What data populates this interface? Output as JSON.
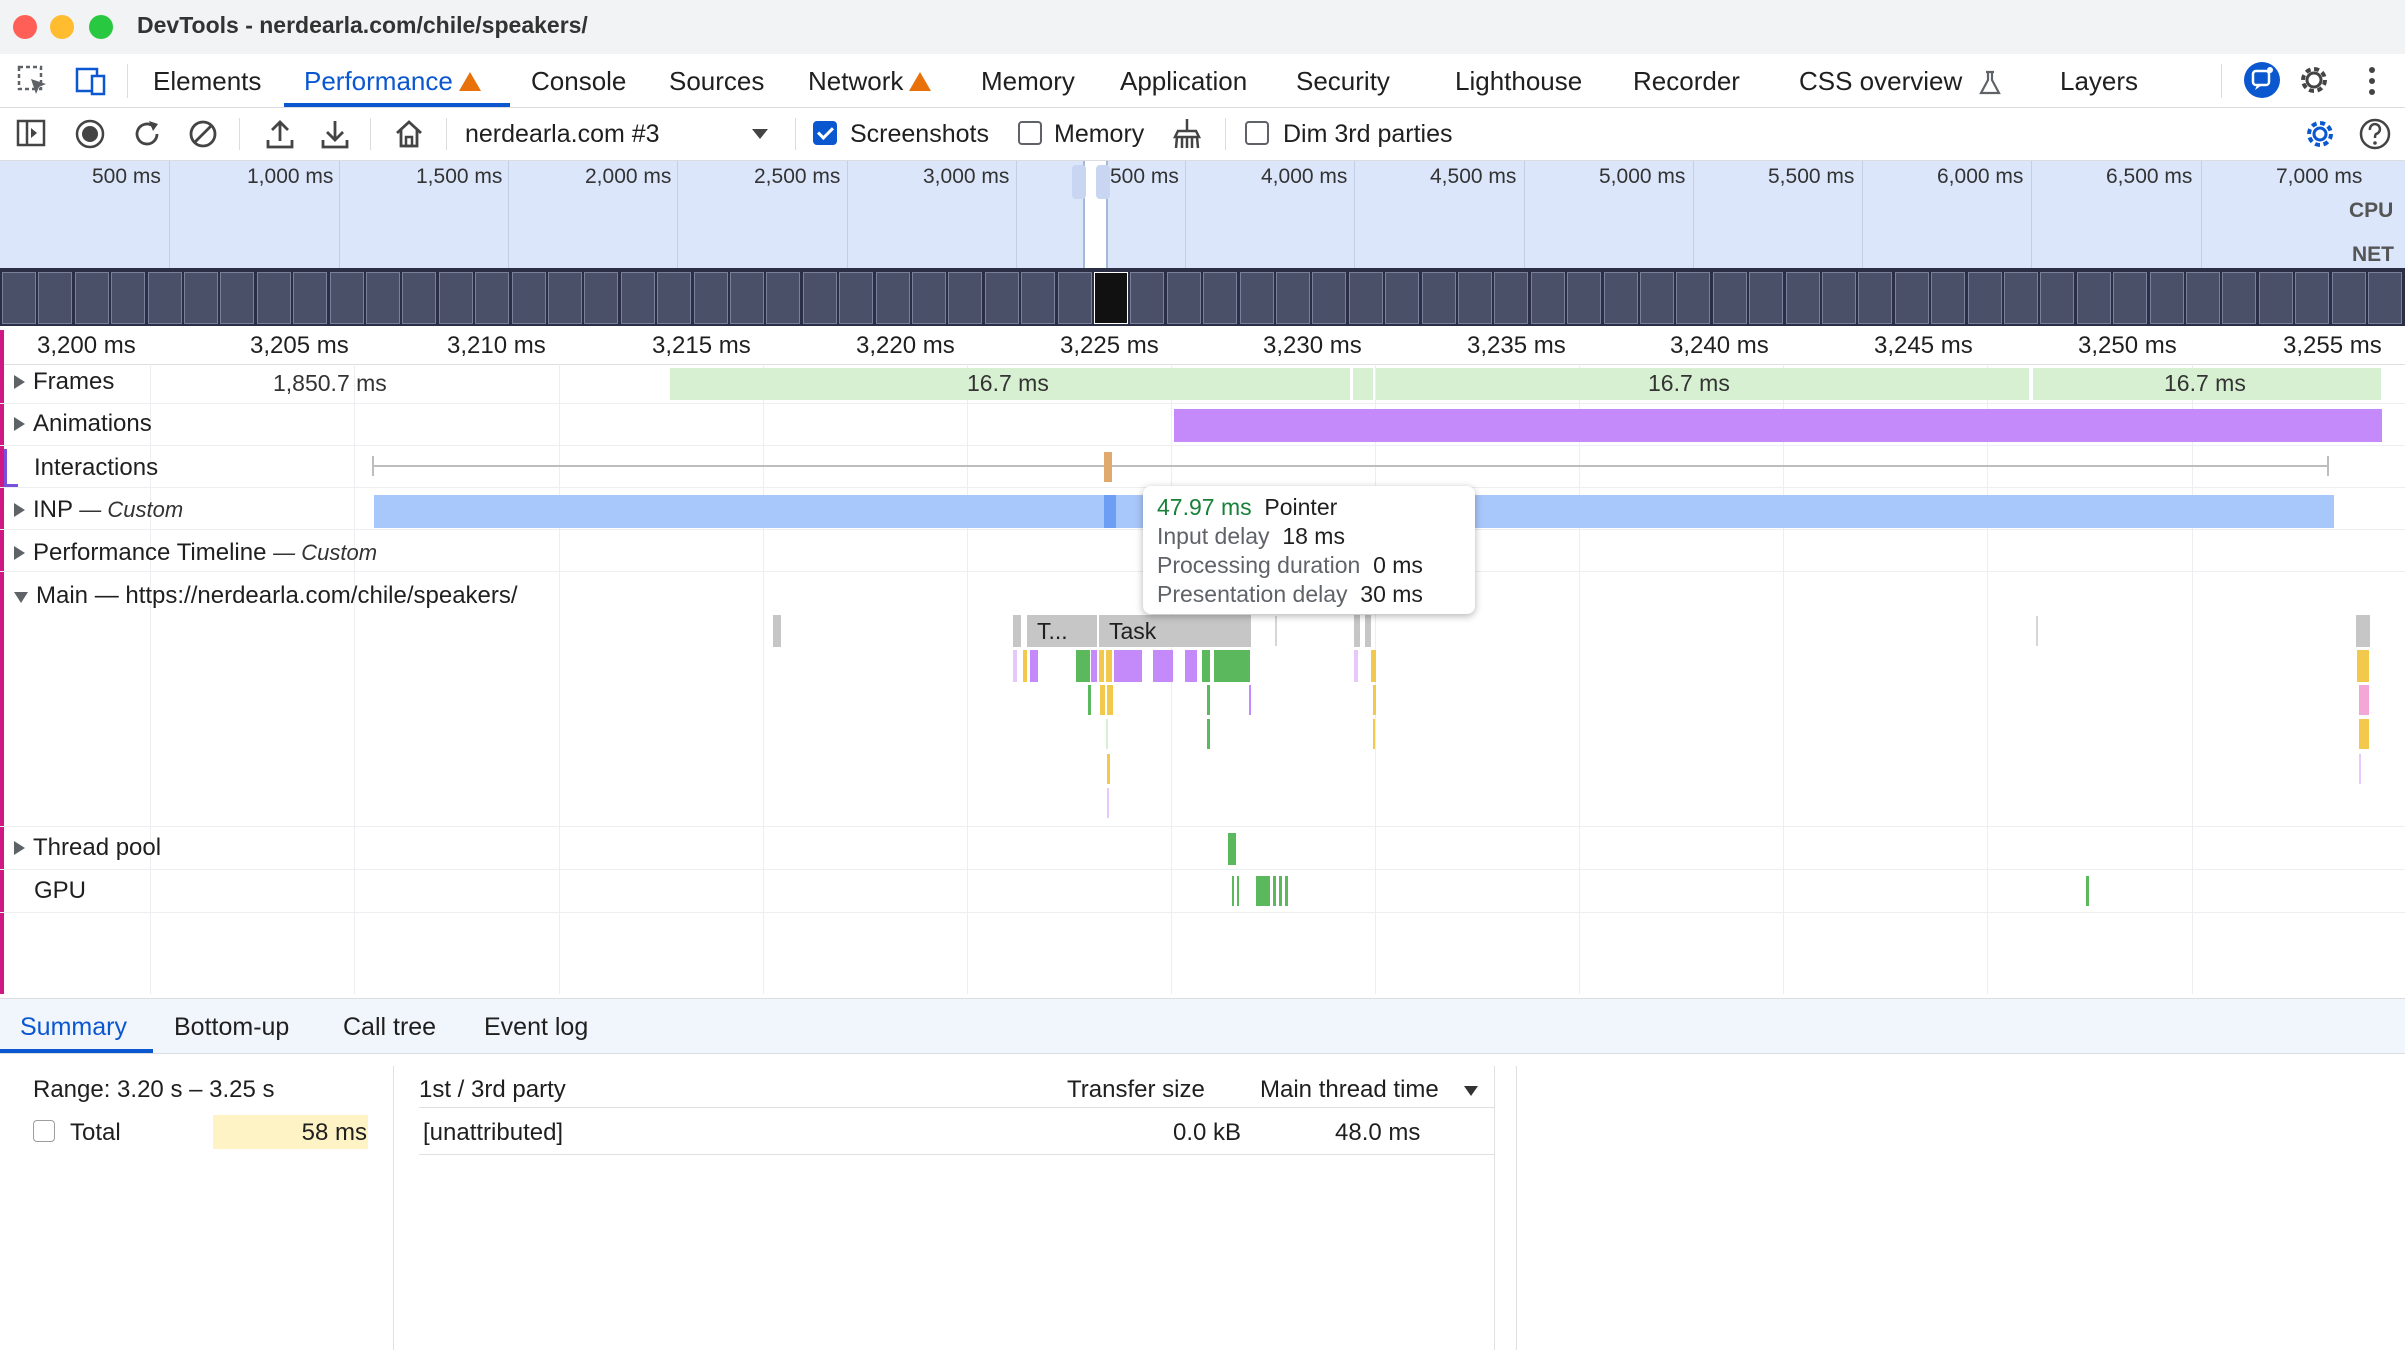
{
  "window": {
    "title": "DevTools - nerdearla.com/chile/speakers/"
  },
  "tabs": [
    {
      "label": "Elements"
    },
    {
      "label": "Performance"
    },
    {
      "label": "Console"
    },
    {
      "label": "Sources"
    },
    {
      "label": "Network"
    },
    {
      "label": "Memory"
    },
    {
      "label": "Application"
    },
    {
      "label": "Security"
    },
    {
      "label": "Lighthouse"
    },
    {
      "label": "Recorder"
    },
    {
      "label": "CSS overview"
    },
    {
      "label": "Layers"
    }
  ],
  "toolbar": {
    "recording_select": "nerdearla.com #3",
    "screenshots_label": "Screenshots",
    "screenshots_checked": true,
    "memory_label": "Memory",
    "memory_checked": false,
    "dim_label": "Dim 3rd parties",
    "dim_checked": false
  },
  "overview": {
    "ticks": [
      "500 ms",
      "1,000 ms",
      "1,500 ms",
      "2,000 ms",
      "2,500 ms",
      "3,000 ms",
      "3,500 ms",
      "4,000 ms",
      "4,500 ms",
      "5,000 ms",
      "5,500 ms",
      "6,000 ms",
      "6,500 ms",
      "7,000 ms"
    ],
    "tick_visible_500": "500 ms",
    "cpu_label": "CPU",
    "net_label": "NET"
  },
  "ruler": {
    "ticks": [
      "3,200 ms",
      "3,205 ms",
      "3,210 ms",
      "3,215 ms",
      "3,220 ms",
      "3,225 ms",
      "3,230 ms",
      "3,235 ms",
      "3,240 ms",
      "3,245 ms",
      "3,250 ms",
      "3,255 ms"
    ]
  },
  "tracks": {
    "frames": {
      "label": "Frames",
      "values": [
        "1,850.7 ms",
        "16.7 ms",
        "16.7 ms",
        "16.7 ms"
      ]
    },
    "animations": {
      "label": "Animations"
    },
    "interactions": {
      "label": "Interactions"
    },
    "inp": {
      "label": "INP",
      "suffix": "— Custom"
    },
    "perf_timeline": {
      "label": "Performance Timeline",
      "suffix": "— Custom"
    },
    "main": {
      "label": "Main — https://nerdearla.com/chile/speakers/",
      "task_short": "T...",
      "task": "Task"
    },
    "thread_pool": {
      "label": "Thread pool"
    },
    "gpu": {
      "label": "GPU"
    }
  },
  "tooltip": {
    "duration": "47.97 ms",
    "type": "Pointer",
    "input_delay_label": "Input delay",
    "input_delay": "18 ms",
    "processing_label": "Processing duration",
    "processing": "0 ms",
    "presentation_label": "Presentation delay",
    "presentation": "30 ms"
  },
  "bottom_tabs": [
    "Summary",
    "Bottom-up",
    "Call tree",
    "Event log"
  ],
  "summary": {
    "range": "Range: 3.20 s – 3.25 s",
    "total_label": "Total",
    "total_value": "58 ms",
    "col_party": "1st / 3rd party",
    "col_transfer": "Transfer size",
    "col_main": "Main thread time",
    "row_name": "[unattributed]",
    "row_transfer": "0.0 kB",
    "row_main": "48.0 ms"
  },
  "colors": {
    "accent": "#0b57d0",
    "warning": "#e8710a",
    "frame": "#d7f0d1",
    "animation": "#c58af9",
    "inp": "#a8c7fa",
    "task": "#c6c6c6",
    "script": "#f2c94c",
    "render": "#c58af9",
    "paint": "#5cb85c"
  }
}
